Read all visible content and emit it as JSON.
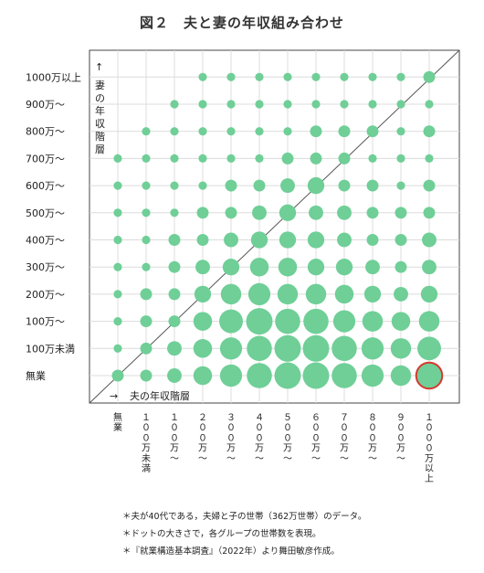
{
  "chart_data": {
    "type": "scatter",
    "title": "図２　夫と妻の年収組み合わせ",
    "x_axis_label": "夫の年収階層",
    "y_axis_label": "妻の年収階層",
    "categories": [
      "無業",
      "100万未満",
      "100万～",
      "200万～",
      "300万～",
      "400万～",
      "500万～",
      "600万～",
      "700万～",
      "800万～",
      "900万～",
      "1000万以上"
    ],
    "x_tick_labels": [
      "無業",
      "１００万未満",
      "１００万～",
      "２００万～",
      "３００万～",
      "４００万～",
      "５００万～",
      "６００万～",
      "７００万～",
      "８００万～",
      "９００万～",
      "１０００万以上"
    ],
    "y_tick_labels": [
      "無業",
      "100万未満",
      "100万～",
      "200万～",
      "300万～",
      "400万～",
      "500万～",
      "600万～",
      "700万～",
      "800万～",
      "900万～",
      "1000万以上"
    ],
    "value_note": "bubble size = relative number of households (1-10 scale)",
    "sizes": [
      [
        2,
        2,
        3,
        5,
        7,
        9,
        10,
        10,
        9,
        7,
        6,
        9
      ],
      [
        1,
        2,
        3,
        5,
        7,
        9,
        10,
        10,
        9,
        7,
        6,
        8
      ],
      [
        1,
        2,
        2,
        5,
        8,
        10,
        9,
        9,
        7,
        6,
        5,
        6
      ],
      [
        1,
        2,
        2,
        4,
        6,
        7,
        6,
        6,
        5,
        4,
        3,
        4
      ],
      [
        1,
        1,
        2,
        3,
        4,
        5,
        5,
        4,
        4,
        3,
        2,
        3
      ],
      [
        1,
        1,
        2,
        2,
        3,
        4,
        4,
        4,
        3,
        2,
        2,
        3
      ],
      [
        1,
        1,
        1,
        2,
        2,
        3,
        4,
        3,
        3,
        2,
        2,
        2
      ],
      [
        1,
        1,
        1,
        1,
        2,
        2,
        3,
        4,
        2,
        2,
        1,
        2
      ],
      [
        1,
        1,
        1,
        1,
        1,
        1,
        2,
        2,
        2,
        1,
        1,
        1
      ],
      [
        0,
        1,
        1,
        1,
        1,
        1,
        1,
        2,
        2,
        2,
        1,
        2
      ],
      [
        0,
        0,
        1,
        1,
        1,
        1,
        1,
        1,
        1,
        1,
        1,
        1
      ],
      [
        0,
        0,
        0,
        1,
        1,
        1,
        1,
        1,
        1,
        1,
        1,
        2
      ]
    ],
    "highlight": {
      "x": "1000万以上",
      "y": "無業"
    },
    "colors": {
      "bubble": "#6fcf97",
      "highlight_outline": "#d63a2f",
      "grid": "#dcdcdc",
      "diagonal": "#555555"
    },
    "diagonal_line": true,
    "grid": true
  },
  "notes": [
    "＊夫が40代である，夫婦と子の世帯（362万世帯）のデータ。",
    "＊ドットの大きさで，各グループの世帯数を表現。",
    "＊『就業構造基本調査』（2022年）より舞田敏彦作成。"
  ]
}
